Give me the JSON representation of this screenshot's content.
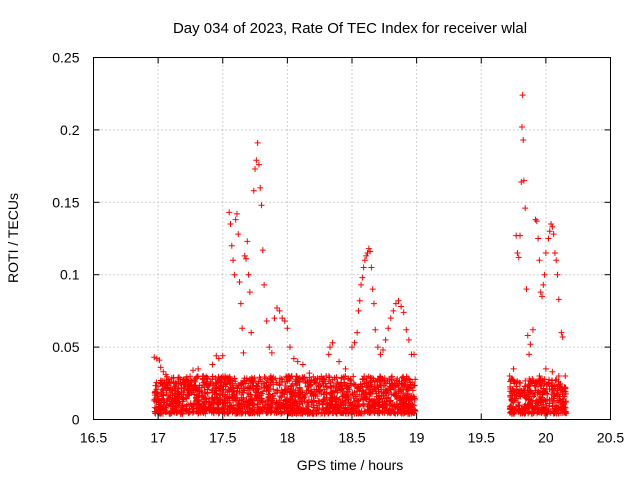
{
  "chart_data": {
    "type": "scatter",
    "title": "Day 034 of 2023, Rate Of TEC Index for receiver wlal",
    "xlabel": "GPS time / hours",
    "ylabel": "ROTI / TECUs",
    "xlim": [
      16.5,
      20.5
    ],
    "ylim": [
      0,
      0.25
    ],
    "xticks": [
      "16.5",
      "17",
      "17.5",
      "18",
      "18.5",
      "19",
      "19.5",
      "20",
      "20.5"
    ],
    "yticks": [
      "0",
      "0.05",
      "0.1",
      "0.15",
      "0.2",
      "0.25"
    ],
    "grid": true,
    "marker": "+",
    "color": "#ff0000",
    "series": [
      {
        "name": "ROTI",
        "points": [
          [
            16.97,
            0.043
          ],
          [
            16.99,
            0.042
          ],
          [
            17.01,
            0.041
          ],
          [
            17.02,
            0.036
          ],
          [
            17.04,
            0.033
          ],
          [
            17.06,
            0.031
          ],
          [
            17.1,
            0.026
          ],
          [
            17.2,
            0.028
          ],
          [
            17.27,
            0.034
          ],
          [
            17.31,
            0.035
          ],
          [
            17.35,
            0.03
          ],
          [
            17.42,
            0.038
          ],
          [
            17.45,
            0.044
          ],
          [
            17.47,
            0.042
          ],
          [
            17.5,
            0.044
          ],
          [
            17.55,
            0.143
          ],
          [
            17.56,
            0.135
          ],
          [
            17.57,
            0.12
          ],
          [
            17.58,
            0.11
          ],
          [
            17.59,
            0.1
          ],
          [
            17.6,
            0.138
          ],
          [
            17.61,
            0.142
          ],
          [
            17.62,
            0.128
          ],
          [
            17.63,
            0.095
          ],
          [
            17.64,
            0.08
          ],
          [
            17.65,
            0.063
          ],
          [
            17.66,
            0.046
          ],
          [
            17.67,
            0.113
          ],
          [
            17.68,
            0.111
          ],
          [
            17.69,
            0.123
          ],
          [
            17.7,
            0.1
          ],
          [
            17.71,
            0.088
          ],
          [
            17.72,
            0.06
          ],
          [
            17.74,
            0.158
          ],
          [
            17.75,
            0.173
          ],
          [
            17.76,
            0.179
          ],
          [
            17.77,
            0.191
          ],
          [
            17.78,
            0.176
          ],
          [
            17.79,
            0.16
          ],
          [
            17.8,
            0.148
          ],
          [
            17.81,
            0.117
          ],
          [
            17.82,
            0.093
          ],
          [
            17.84,
            0.068
          ],
          [
            17.86,
            0.05
          ],
          [
            17.88,
            0.046
          ],
          [
            17.9,
            0.07
          ],
          [
            17.92,
            0.077
          ],
          [
            17.94,
            0.075
          ],
          [
            17.96,
            0.07
          ],
          [
            17.98,
            0.068
          ],
          [
            18.0,
            0.063
          ],
          [
            18.02,
            0.05
          ],
          [
            18.05,
            0.042
          ],
          [
            18.08,
            0.04
          ],
          [
            18.12,
            0.038
          ],
          [
            18.17,
            0.032
          ],
          [
            18.22,
            0.025
          ],
          [
            18.28,
            0.025
          ],
          [
            18.3,
            0.03
          ],
          [
            18.32,
            0.045
          ],
          [
            18.33,
            0.05
          ],
          [
            18.35,
            0.053
          ],
          [
            18.4,
            0.04
          ],
          [
            18.45,
            0.035
          ],
          [
            18.5,
            0.05
          ],
          [
            18.52,
            0.053
          ],
          [
            18.54,
            0.06
          ],
          [
            18.55,
            0.075
          ],
          [
            18.56,
            0.082
          ],
          [
            18.57,
            0.093
          ],
          [
            18.58,
            0.098
          ],
          [
            18.59,
            0.105
          ],
          [
            18.6,
            0.11
          ],
          [
            18.61,
            0.113
          ],
          [
            18.62,
            0.115
          ],
          [
            18.63,
            0.118
          ],
          [
            18.64,
            0.116
          ],
          [
            18.65,
            0.105
          ],
          [
            18.66,
            0.09
          ],
          [
            18.67,
            0.08
          ],
          [
            18.68,
            0.062
          ],
          [
            18.7,
            0.05
          ],
          [
            18.72,
            0.045
          ],
          [
            18.74,
            0.048
          ],
          [
            18.76,
            0.055
          ],
          [
            18.78,
            0.063
          ],
          [
            18.8,
            0.07
          ],
          [
            18.82,
            0.075
          ],
          [
            18.84,
            0.08
          ],
          [
            18.86,
            0.082
          ],
          [
            18.88,
            0.078
          ],
          [
            18.9,
            0.074
          ],
          [
            18.92,
            0.062
          ],
          [
            18.94,
            0.055
          ],
          [
            18.96,
            0.045
          ],
          [
            18.98,
            0.045
          ],
          [
            19.72,
            0.03
          ],
          [
            19.75,
            0.035
          ],
          [
            19.77,
            0.127
          ],
          [
            19.78,
            0.115
          ],
          [
            19.79,
            0.112
          ],
          [
            19.8,
            0.127
          ],
          [
            19.81,
            0.164
          ],
          [
            19.815,
            0.202
          ],
          [
            19.82,
            0.224
          ],
          [
            19.825,
            0.193
          ],
          [
            19.83,
            0.165
          ],
          [
            19.84,
            0.146
          ],
          [
            19.85,
            0.09
          ],
          [
            19.86,
            0.058
          ],
          [
            19.87,
            0.045
          ],
          [
            19.88,
            0.052
          ],
          [
            19.9,
            0.062
          ],
          [
            19.92,
            0.138
          ],
          [
            19.93,
            0.137
          ],
          [
            19.94,
            0.125
          ],
          [
            19.95,
            0.11
          ],
          [
            19.96,
            0.088
          ],
          [
            19.97,
            0.085
          ],
          [
            19.98,
            0.093
          ],
          [
            19.99,
            0.1
          ],
          [
            20.0,
            0.115
          ],
          [
            20.02,
            0.125
          ],
          [
            20.03,
            0.13
          ],
          [
            20.04,
            0.135
          ],
          [
            20.05,
            0.133
          ],
          [
            20.06,
            0.128
          ],
          [
            20.07,
            0.115
          ],
          [
            20.08,
            0.11
          ],
          [
            20.09,
            0.1
          ],
          [
            20.1,
            0.083
          ],
          [
            20.12,
            0.06
          ],
          [
            20.13,
            0.057
          ],
          [
            20.1,
            0.03
          ],
          [
            20.05,
            0.033
          ],
          [
            20.0,
            0.035
          ],
          [
            19.95,
            0.03
          ],
          [
            20.15,
            0.03
          ]
        ]
      }
    ],
    "background_band": {
      "note": "dense cluster of low ROTI values",
      "segments": [
        {
          "x_start": 16.97,
          "x_end": 18.99,
          "y_min": 0.004,
          "y_max": 0.03
        },
        {
          "x_start": 19.72,
          "x_end": 20.16,
          "y_min": 0.004,
          "y_max": 0.028
        }
      ]
    }
  }
}
